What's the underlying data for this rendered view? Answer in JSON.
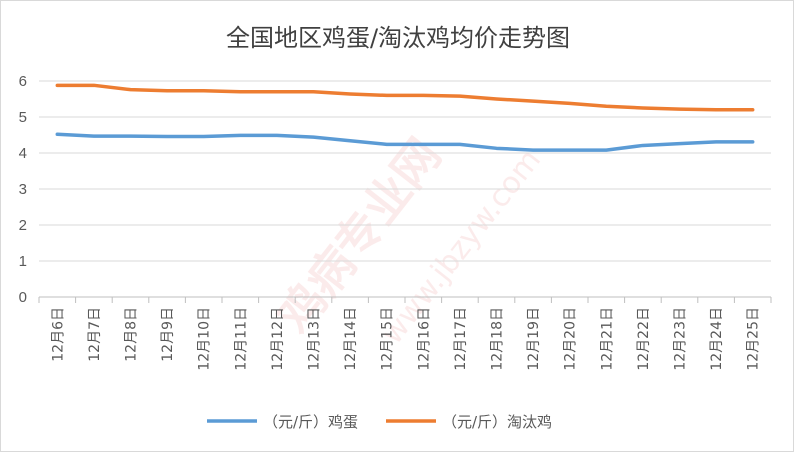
{
  "chart_data": {
    "type": "line",
    "title": "全国地区鸡蛋/淘汰鸡均价走势图",
    "categories": [
      "12月6日",
      "12月7日",
      "12月8日",
      "12月9日",
      "12月10日",
      "12月11日",
      "12月12日",
      "12月13日",
      "12月14日",
      "12月15日",
      "12月16日",
      "12月17日",
      "12月18日",
      "12月19日",
      "12月20日",
      "12月21日",
      "12月22日",
      "12月23日",
      "12月24日",
      "12月25日"
    ],
    "series": [
      {
        "name": "（元/斤）鸡蛋",
        "color": "#5b9bd5",
        "values": [
          4.52,
          4.47,
          4.47,
          4.46,
          4.46,
          4.49,
          4.49,
          4.44,
          4.34,
          4.24,
          4.24,
          4.24,
          4.13,
          4.08,
          4.08,
          4.08,
          4.21,
          4.26,
          4.31,
          4.31
        ]
      },
      {
        "name": "（元/斤）淘汰鸡",
        "color": "#ed7d31",
        "values": [
          5.88,
          5.88,
          5.76,
          5.73,
          5.73,
          5.7,
          5.7,
          5.7,
          5.64,
          5.6,
          5.6,
          5.58,
          5.5,
          5.44,
          5.38,
          5.3,
          5.25,
          5.22,
          5.2,
          5.2
        ]
      }
    ],
    "ylim": [
      0,
      6
    ],
    "yticks": [
      "0",
      "1",
      "2",
      "3",
      "4",
      "5",
      "6"
    ],
    "grid": true,
    "legend_position": "bottom"
  },
  "watermark": {
    "main": "鸡病专业网",
    "url": "www.jbzyw.com"
  }
}
